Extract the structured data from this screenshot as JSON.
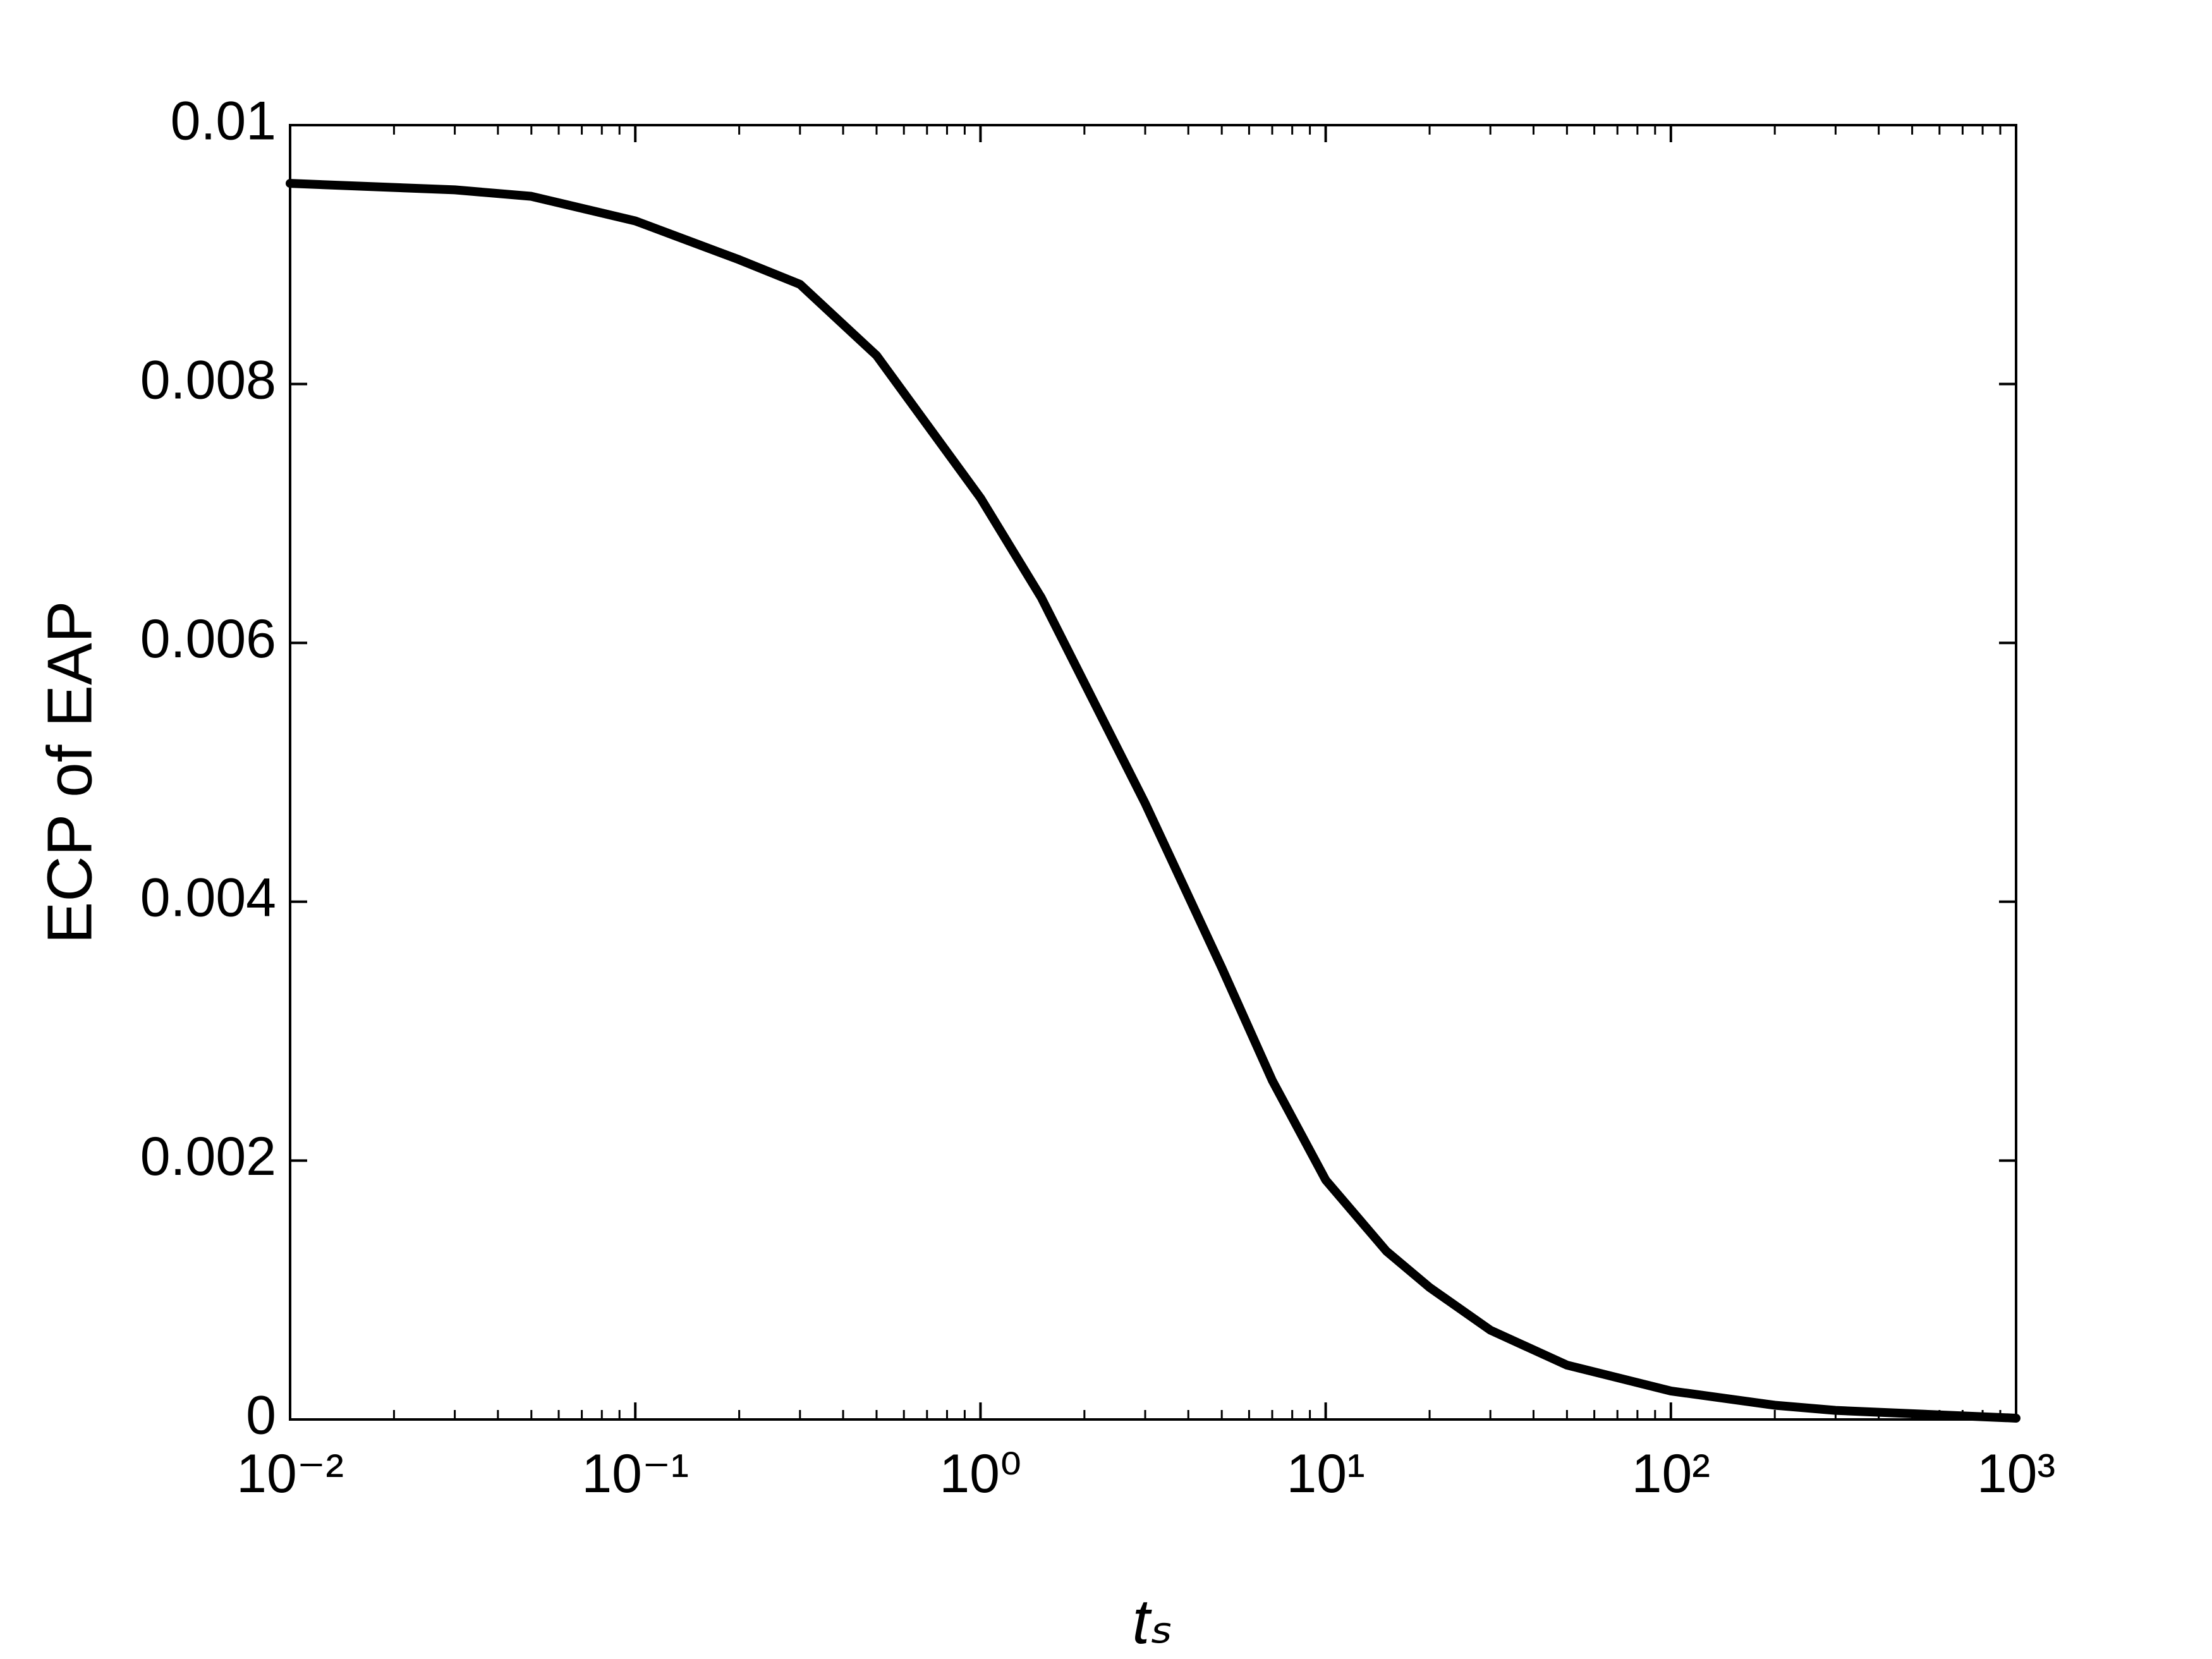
{
  "chart_data": {
    "type": "line",
    "x_label": "tₛ",
    "y_label": "ECP of EAP",
    "xscale": "log",
    "xlim": [
      0.01,
      1000
    ],
    "xticks": [
      {
        "value": 0.01,
        "label": "10⁻²"
      },
      {
        "value": 0.1,
        "label": "10⁻¹"
      },
      {
        "value": 1,
        "label": "10⁰"
      },
      {
        "value": 10,
        "label": "10¹"
      },
      {
        "value": 100,
        "label": "10²"
      },
      {
        "value": 1000,
        "label": "10³"
      }
    ],
    "xminorticks": [
      0.02,
      0.03,
      0.04,
      0.05,
      0.06,
      0.07,
      0.08,
      0.09,
      0.2,
      0.3,
      0.4,
      0.5,
      0.6,
      0.7,
      0.8,
      0.9,
      2,
      3,
      4,
      5,
      6,
      7,
      8,
      9,
      20,
      30,
      40,
      50,
      60,
      70,
      80,
      90,
      200,
      300,
      400,
      500,
      600,
      700,
      800,
      900
    ],
    "ylim": [
      0,
      0.01
    ],
    "yticks": [
      0,
      0.002,
      0.004,
      0.006,
      0.008,
      0.01
    ],
    "grid": false,
    "series": [
      {
        "color": "#000000",
        "x": [
          0.01,
          0.03,
          0.05,
          0.1,
          0.2,
          0.3,
          0.5,
          1,
          1.5,
          2,
          3,
          5,
          7,
          10,
          15,
          20,
          30,
          50,
          100,
          200,
          300,
          1000
        ],
        "values": [
          0.00955,
          0.0095,
          0.00945,
          0.00926,
          0.00896,
          0.00877,
          0.00822,
          0.00712,
          0.00635,
          0.00569,
          0.00476,
          0.00349,
          0.00262,
          0.00185,
          0.0013,
          0.00102,
          0.00069,
          0.00042,
          0.00022,
          0.00011,
          7e-05,
          1e-05
        ]
      }
    ]
  }
}
